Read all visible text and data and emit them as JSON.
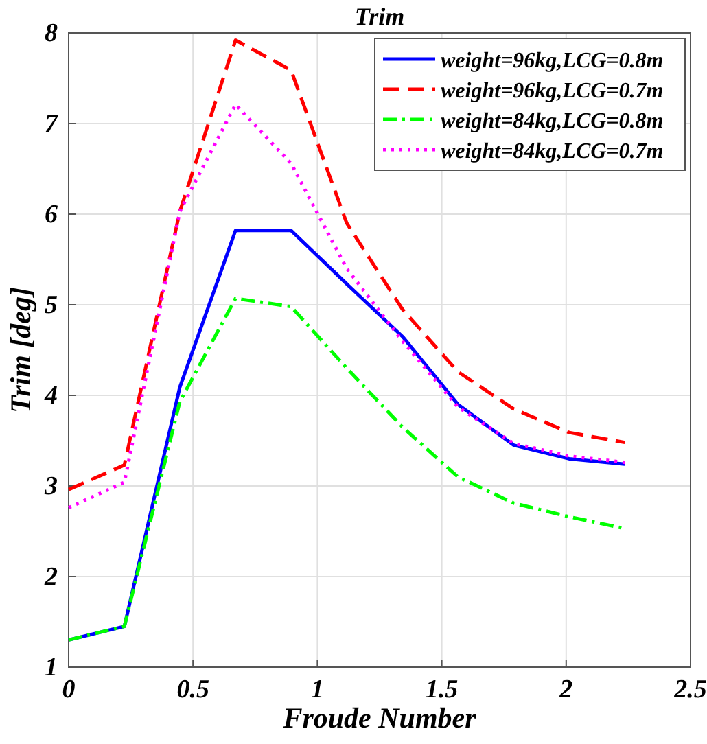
{
  "chart_data": {
    "type": "line",
    "title": "Trim",
    "xlabel": "Froude Number",
    "ylabel": "Trim [deg]",
    "x": [
      0,
      0.224,
      0.447,
      0.671,
      0.894,
      1.118,
      1.342,
      1.565,
      1.789,
      2.012,
      2.236
    ],
    "series": [
      {
        "name": "weight=96kg,LCG=0.8m",
        "color": "#0000ff",
        "line_style": "solid",
        "values": [
          1.3,
          1.45,
          4.09,
          5.82,
          5.82,
          5.23,
          4.65,
          3.9,
          3.45,
          3.3,
          3.24
        ]
      },
      {
        "name": "weight=96kg,LCG=0.7m",
        "color": "#ff0000",
        "line_style": "dashed",
        "values": [
          2.96,
          3.23,
          6.03,
          7.92,
          7.59,
          5.9,
          4.95,
          4.26,
          3.85,
          3.59,
          3.48
        ]
      },
      {
        "name": "weight=84kg,LCG=0.8m",
        "color": "#00ff00",
        "line_style": "dashdot",
        "values": [
          1.3,
          1.45,
          3.93,
          5.07,
          4.98,
          4.3,
          3.65,
          3.1,
          2.81,
          2.66,
          2.53
        ]
      },
      {
        "name": "weight=84kg,LCG=0.7m",
        "color": "#ff00ff",
        "line_style": "dotted",
        "values": [
          2.76,
          3.04,
          6.03,
          7.21,
          6.56,
          5.4,
          4.6,
          3.87,
          3.47,
          3.33,
          3.26
        ]
      }
    ],
    "xlim": [
      0,
      2.5
    ],
    "xticks": [
      0,
      0.5,
      1,
      1.5,
      2,
      2.5
    ],
    "ylim": [
      1,
      8
    ],
    "yticks": [
      1,
      2,
      3,
      4,
      5,
      6,
      7,
      8
    ],
    "grid": true,
    "legend": "top right",
    "marker": "none"
  }
}
